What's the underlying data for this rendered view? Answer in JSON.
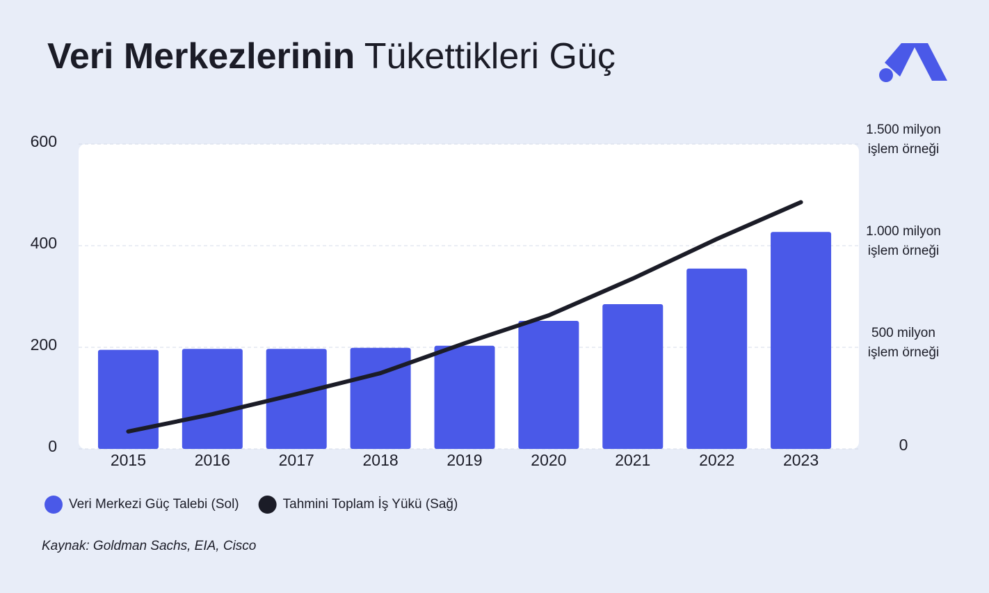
{
  "chart_data": {
    "type": "bar_line",
    "title": [
      "Veri Merkezlerinin",
      "Tükettikleri Güç"
    ],
    "categories": [
      "2015",
      "2016",
      "2017",
      "2018",
      "2019",
      "2020",
      "2021",
      "2022",
      "2023"
    ],
    "series": [
      {
        "name": "Veri Merkezi Güç Talebi (Sol)",
        "type": "bar",
        "color": "#4a59e8",
        "values": [
          195,
          197,
          197,
          199,
          203,
          252,
          285,
          355,
          427
        ]
      },
      {
        "name": "Tahmini Toplam İş Yükü (Sağ)",
        "type": "line",
        "axis": "y2",
        "color": "#1b1c27",
        "values": [
          86,
          171,
          270,
          373,
          520,
          657,
          838,
          1033,
          1214
        ]
      }
    ],
    "ylim": [
      0,
      600
    ],
    "yticks": [
      0,
      200,
      400,
      600
    ],
    "y2lim": [
      0,
      1500
    ],
    "y2ticks": [
      0,
      {
        "value": 500,
        "label": "500 milyon işlem örneği"
      },
      {
        "value": 1000,
        "label": "1.000 milyon işlem örneği"
      },
      {
        "value": 1500,
        "label": "1.500 milyon işlem örneği"
      }
    ],
    "grid": true,
    "source": "Kaynak: Goldman Sachs, EIA, Cisco"
  }
}
